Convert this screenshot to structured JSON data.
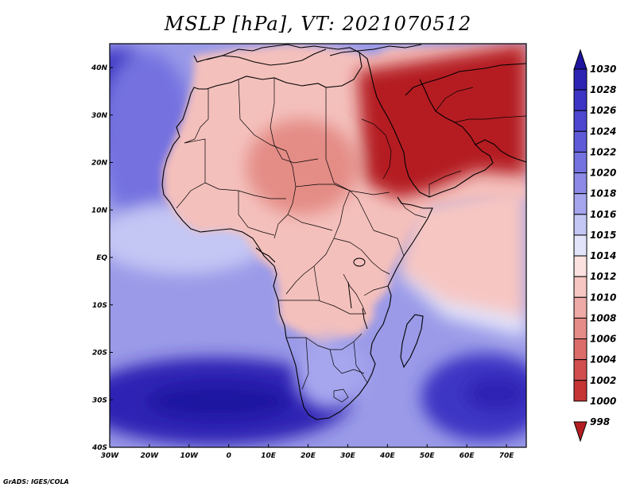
{
  "title": "MSLP [hPa], VT: 2021070512",
  "credit": "GrADS: IGES/COLA",
  "lon_labels": [
    "30W",
    "20W",
    "10W",
    "0",
    "10E",
    "20E",
    "30E",
    "40E",
    "50E",
    "60E",
    "70E"
  ],
  "lat_labels": [
    "40N",
    "30N",
    "20N",
    "10N",
    "EQ",
    "10S",
    "20S",
    "30S",
    "40S"
  ],
  "colorbar": {
    "labels": [
      "1030",
      "1028",
      "1026",
      "1024",
      "1022",
      "1020",
      "1018",
      "1016",
      "1015",
      "1014",
      "1012",
      "1010",
      "1008",
      "1006",
      "1004",
      "1002",
      "1000",
      "998"
    ],
    "colors": [
      "#1e14a0",
      "#2e24b4",
      "#3c34c4",
      "#4c46d0",
      "#5e5ad8",
      "#7472e0",
      "#8c8ae6",
      "#a6a6ee",
      "#c4c6f4",
      "#e2e4fa",
      "#fbe2e0",
      "#f6c6c2",
      "#eeaaa6",
      "#e68c88",
      "#dc6c6a",
      "#d24e4e",
      "#c63434",
      "#b41e22"
    ]
  },
  "regions": [
    {
      "name": "background-high",
      "color": "#9a9ae8"
    },
    {
      "name": "north-atlantic-high",
      "color": "#3c34c4"
    },
    {
      "name": "azores-ridge",
      "color": "#7472e0"
    },
    {
      "name": "atlantic-tropics",
      "color": "#c4c6f4"
    },
    {
      "name": "south-atlantic-high",
      "color": "#2e24b4"
    },
    {
      "name": "indian-ocean-high",
      "color": "#3c34c4"
    },
    {
      "name": "south-atlantic-core",
      "color": "#1e14a0"
    },
    {
      "name": "indian-ocean-core",
      "color": "#2e24b4"
    },
    {
      "name": "indian-ocean-band",
      "color": "#e2e4fa"
    },
    {
      "name": "indian-ocean-trough",
      "color": "#f6c6c2"
    },
    {
      "name": "africa-land",
      "color": "#f4c0bc"
    },
    {
      "name": "sahara-low",
      "color": "#e48c86"
    },
    {
      "name": "arabian-low",
      "color": "#b41e22"
    },
    {
      "name": "southern-africa-high",
      "color": "#a6a6ee"
    }
  ]
}
